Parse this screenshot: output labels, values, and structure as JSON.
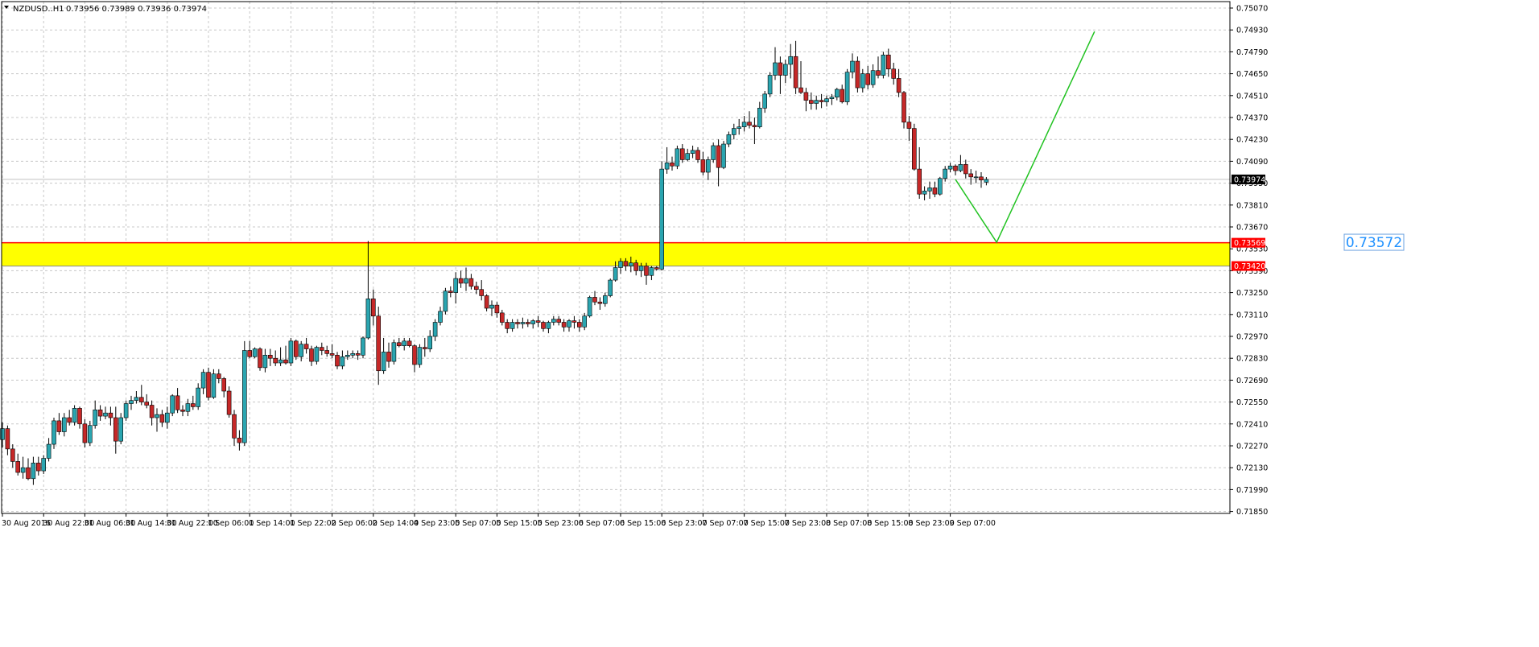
{
  "header": {
    "symbol": "NZDUSD..H1",
    "ohlc": "0.73956 0.73989 0.73936 0.73974"
  },
  "colors": {
    "background": "#ffffff",
    "grid": "#c8c8c8",
    "frame": "#000000",
    "bull_body": "#2aa5b0",
    "bear_body": "#c62828",
    "wick": "#000000",
    "zone_fill": "#ffff00",
    "zone_border": "#ff0000",
    "projection_line": "#22c322",
    "current_price_line": "#c0c0c0",
    "current_price_tag": "#000000",
    "zone_tag": "#ff0000",
    "target_label": "#1e90ff"
  },
  "chart_data": {
    "type": "candlestick",
    "timeframe": "H1",
    "ylim": [
      0.71782,
      0.7507
    ],
    "y_ticks": [
      "0.75070",
      "0.74930",
      "0.74790",
      "0.74650",
      "0.74510",
      "0.74370",
      "0.74230",
      "0.74090",
      "0.73950",
      "0.73810",
      "0.73670",
      "0.73530",
      "0.73390",
      "0.73250",
      "0.73110",
      "0.72970",
      "0.72830",
      "0.72690",
      "0.72550",
      "0.72410",
      "0.72270",
      "0.72130",
      "0.71990",
      "0.71850"
    ],
    "x_ticks": [
      "30 Aug 2016",
      "30 Aug 22:00",
      "31 Aug 06:00",
      "31 Aug 14:00",
      "31 Aug 22:00",
      "1 Sep 06:00",
      "1 Sep 14:00",
      "1 Sep 22:00",
      "2 Sep 06:00",
      "2 Sep 14:00",
      "4 Sep 23:00",
      "5 Sep 07:00",
      "5 Sep 15:00",
      "5 Sep 23:00",
      "6 Sep 07:00",
      "6 Sep 15:00",
      "6 Sep 23:00",
      "7 Sep 07:00",
      "7 Sep 15:00",
      "7 Sep 23:00",
      "8 Sep 07:00",
      "8 Sep 15:00",
      "8 Sep 23:00",
      "9 Sep 07:00"
    ],
    "grid": true,
    "current_price": 0.73974,
    "current_price_label": "0.73974",
    "zone": {
      "top": 0.73569,
      "bottom": 0.7342,
      "top_label": "0.73569",
      "bottom_label": "0.73420"
    },
    "target_label": "0.73572",
    "projection": [
      {
        "bar": 185,
        "price": 0.73974
      },
      {
        "bar": 193,
        "price": 0.73572
      },
      {
        "bar": 212,
        "price": 0.7492
      }
    ],
    "candles": [
      [
        0.7231,
        0.7242,
        0.7226,
        0.7238
      ],
      [
        0.7238,
        0.724,
        0.7221,
        0.7225
      ],
      [
        0.7225,
        0.7228,
        0.7213,
        0.7217
      ],
      [
        0.7217,
        0.7222,
        0.7208,
        0.721
      ],
      [
        0.721,
        0.722,
        0.7206,
        0.7213
      ],
      [
        0.7213,
        0.7219,
        0.7205,
        0.7206
      ],
      [
        0.7206,
        0.722,
        0.7202,
        0.7216
      ],
      [
        0.7216,
        0.722,
        0.7208,
        0.7211
      ],
      [
        0.7211,
        0.7221,
        0.7209,
        0.7219
      ],
      [
        0.7219,
        0.7232,
        0.7217,
        0.7228
      ],
      [
        0.7228,
        0.7245,
        0.7225,
        0.7243
      ],
      [
        0.7243,
        0.7248,
        0.7234,
        0.7236
      ],
      [
        0.7236,
        0.7248,
        0.7233,
        0.7245
      ],
      [
        0.7245,
        0.725,
        0.724,
        0.7242
      ],
      [
        0.7242,
        0.7253,
        0.724,
        0.7251
      ],
      [
        0.7251,
        0.7252,
        0.7238,
        0.7241
      ],
      [
        0.7241,
        0.7244,
        0.7226,
        0.7229
      ],
      [
        0.7229,
        0.7243,
        0.7227,
        0.724
      ],
      [
        0.724,
        0.7256,
        0.7238,
        0.725
      ],
      [
        0.725,
        0.7253,
        0.7243,
        0.7246
      ],
      [
        0.7246,
        0.7252,
        0.7244,
        0.7248
      ],
      [
        0.7248,
        0.7252,
        0.724,
        0.7245
      ],
      [
        0.7245,
        0.7252,
        0.7222,
        0.723
      ],
      [
        0.723,
        0.7248,
        0.7228,
        0.7245
      ],
      [
        0.7245,
        0.7256,
        0.7243,
        0.7254
      ],
      [
        0.7254,
        0.7259,
        0.725,
        0.7256
      ],
      [
        0.7256,
        0.7262,
        0.7254,
        0.7258
      ],
      [
        0.7258,
        0.7266,
        0.7253,
        0.7255
      ],
      [
        0.7255,
        0.726,
        0.7251,
        0.7253
      ],
      [
        0.7253,
        0.7256,
        0.724,
        0.7245
      ],
      [
        0.7245,
        0.7251,
        0.7236,
        0.7247
      ],
      [
        0.7247,
        0.725,
        0.7239,
        0.7242
      ],
      [
        0.7242,
        0.7252,
        0.7238,
        0.7248
      ],
      [
        0.7248,
        0.726,
        0.7246,
        0.7259
      ],
      [
        0.7259,
        0.7264,
        0.7248,
        0.725
      ],
      [
        0.725,
        0.7253,
        0.7246,
        0.7249
      ],
      [
        0.7249,
        0.7257,
        0.7246,
        0.7254
      ],
      [
        0.7254,
        0.7259,
        0.725,
        0.7252
      ],
      [
        0.7252,
        0.7267,
        0.725,
        0.7264
      ],
      [
        0.7264,
        0.7276,
        0.726,
        0.7274
      ],
      [
        0.7274,
        0.7277,
        0.7256,
        0.7258
      ],
      [
        0.7258,
        0.7276,
        0.7257,
        0.7273
      ],
      [
        0.7273,
        0.7276,
        0.7267,
        0.727
      ],
      [
        0.727,
        0.7271,
        0.7258,
        0.7262
      ],
      [
        0.7262,
        0.7265,
        0.7245,
        0.7247
      ],
      [
        0.7247,
        0.725,
        0.7227,
        0.7232
      ],
      [
        0.7232,
        0.7237,
        0.7224,
        0.7229
      ],
      [
        0.7229,
        0.7294,
        0.7227,
        0.7288
      ],
      [
        0.7288,
        0.7294,
        0.7283,
        0.7284
      ],
      [
        0.7284,
        0.729,
        0.7283,
        0.7289
      ],
      [
        0.7289,
        0.729,
        0.7275,
        0.7277
      ],
      [
        0.7277,
        0.7289,
        0.7274,
        0.7285
      ],
      [
        0.7285,
        0.7289,
        0.7278,
        0.7283
      ],
      [
        0.7283,
        0.7288,
        0.7278,
        0.728
      ],
      [
        0.728,
        0.729,
        0.7278,
        0.7282
      ],
      [
        0.7282,
        0.7291,
        0.7279,
        0.728
      ],
      [
        0.728,
        0.7296,
        0.7278,
        0.7294
      ],
      [
        0.7294,
        0.7295,
        0.7282,
        0.7284
      ],
      [
        0.7284,
        0.7294,
        0.7281,
        0.7292
      ],
      [
        0.7292,
        0.7296,
        0.7286,
        0.7289
      ],
      [
        0.7289,
        0.7291,
        0.7278,
        0.7281
      ],
      [
        0.7281,
        0.7291,
        0.7279,
        0.729
      ],
      [
        0.729,
        0.7293,
        0.7285,
        0.7288
      ],
      [
        0.7288,
        0.7291,
        0.7284,
        0.7286
      ],
      [
        0.7286,
        0.7292,
        0.7283,
        0.7285
      ],
      [
        0.7285,
        0.7287,
        0.7276,
        0.7278
      ],
      [
        0.7278,
        0.7288,
        0.7276,
        0.7284
      ],
      [
        0.7284,
        0.7288,
        0.7282,
        0.7285
      ],
      [
        0.7285,
        0.7288,
        0.7283,
        0.7286
      ],
      [
        0.7286,
        0.7288,
        0.7282,
        0.7285
      ],
      [
        0.7285,
        0.7297,
        0.7283,
        0.7296
      ],
      [
        0.7296,
        0.7358,
        0.7295,
        0.7321
      ],
      [
        0.7321,
        0.7327,
        0.7304,
        0.731
      ],
      [
        0.731,
        0.7316,
        0.7266,
        0.7275
      ],
      [
        0.7275,
        0.7296,
        0.7273,
        0.7287
      ],
      [
        0.7287,
        0.7293,
        0.7277,
        0.7281
      ],
      [
        0.7281,
        0.7295,
        0.7279,
        0.7293
      ],
      [
        0.7293,
        0.7296,
        0.729,
        0.7291
      ],
      [
        0.7291,
        0.7296,
        0.7288,
        0.7294
      ],
      [
        0.7294,
        0.7296,
        0.729,
        0.7291
      ],
      [
        0.7291,
        0.7292,
        0.7274,
        0.7279
      ],
      [
        0.7279,
        0.7292,
        0.7277,
        0.729
      ],
      [
        0.729,
        0.7296,
        0.7284,
        0.7289
      ],
      [
        0.7289,
        0.7301,
        0.7287,
        0.7297
      ],
      [
        0.7297,
        0.7308,
        0.7294,
        0.7306
      ],
      [
        0.7306,
        0.7316,
        0.7304,
        0.7313
      ],
      [
        0.7313,
        0.7328,
        0.7311,
        0.7326
      ],
      [
        0.7326,
        0.7329,
        0.7322,
        0.7325
      ],
      [
        0.7325,
        0.7338,
        0.7318,
        0.7334
      ],
      [
        0.7334,
        0.7339,
        0.7328,
        0.7331
      ],
      [
        0.7331,
        0.7341,
        0.7326,
        0.7334
      ],
      [
        0.7334,
        0.7337,
        0.7327,
        0.7329
      ],
      [
        0.7329,
        0.7332,
        0.7324,
        0.7327
      ],
      [
        0.7327,
        0.7333,
        0.732,
        0.7323
      ],
      [
        0.7323,
        0.7324,
        0.7313,
        0.7315
      ],
      [
        0.7315,
        0.732,
        0.731,
        0.7317
      ],
      [
        0.7317,
        0.7319,
        0.7309,
        0.7312
      ],
      [
        0.7312,
        0.7314,
        0.7304,
        0.7306
      ],
      [
        0.7306,
        0.7308,
        0.7299,
        0.7302
      ],
      [
        0.7302,
        0.7308,
        0.73,
        0.7306
      ],
      [
        0.7306,
        0.7308,
        0.7302,
        0.7305
      ],
      [
        0.7305,
        0.7309,
        0.7302,
        0.7306
      ],
      [
        0.7306,
        0.7308,
        0.7303,
        0.7305
      ],
      [
        0.7305,
        0.7308,
        0.7302,
        0.7307
      ],
      [
        0.7307,
        0.731,
        0.7303,
        0.7306
      ],
      [
        0.7306,
        0.7307,
        0.73,
        0.7302
      ],
      [
        0.7302,
        0.7307,
        0.7299,
        0.7306
      ],
      [
        0.7306,
        0.731,
        0.7304,
        0.7308
      ],
      [
        0.7308,
        0.731,
        0.7304,
        0.7306
      ],
      [
        0.7306,
        0.7308,
        0.73,
        0.7303
      ],
      [
        0.7303,
        0.7308,
        0.73,
        0.7307
      ],
      [
        0.7307,
        0.731,
        0.7302,
        0.7306
      ],
      [
        0.7306,
        0.7308,
        0.73,
        0.7303
      ],
      [
        0.7303,
        0.7312,
        0.7301,
        0.731
      ],
      [
        0.731,
        0.7323,
        0.7309,
        0.7322
      ],
      [
        0.7322,
        0.7326,
        0.7317,
        0.7319
      ],
      [
        0.7319,
        0.7322,
        0.7314,
        0.7318
      ],
      [
        0.7318,
        0.7325,
        0.7316,
        0.7323
      ],
      [
        0.7323,
        0.7334,
        0.7322,
        0.7333
      ],
      [
        0.7333,
        0.7345,
        0.7332,
        0.7341
      ],
      [
        0.7341,
        0.7347,
        0.7337,
        0.7345
      ],
      [
        0.7345,
        0.7347,
        0.7339,
        0.7342
      ],
      [
        0.7342,
        0.7348,
        0.7338,
        0.7344
      ],
      [
        0.7344,
        0.7346,
        0.7336,
        0.7339
      ],
      [
        0.7339,
        0.7344,
        0.7335,
        0.7342
      ],
      [
        0.7342,
        0.7344,
        0.733,
        0.7336
      ],
      [
        0.7336,
        0.7342,
        0.7333,
        0.7341
      ],
      [
        0.7341,
        0.7342,
        0.7339,
        0.734
      ],
      [
        0.734,
        0.7409,
        0.7339,
        0.7404
      ],
      [
        0.7404,
        0.7418,
        0.7401,
        0.7408
      ],
      [
        0.7408,
        0.7412,
        0.7403,
        0.7406
      ],
      [
        0.7406,
        0.7419,
        0.7404,
        0.7417
      ],
      [
        0.7417,
        0.742,
        0.7408,
        0.741
      ],
      [
        0.741,
        0.7417,
        0.7409,
        0.7414
      ],
      [
        0.7414,
        0.7419,
        0.7411,
        0.7416
      ],
      [
        0.7416,
        0.7418,
        0.7408,
        0.741
      ],
      [
        0.741,
        0.7415,
        0.74,
        0.7402
      ],
      [
        0.7402,
        0.7412,
        0.7397,
        0.741
      ],
      [
        0.741,
        0.7421,
        0.7408,
        0.7419
      ],
      [
        0.7419,
        0.7423,
        0.7393,
        0.7405
      ],
      [
        0.7405,
        0.7422,
        0.7404,
        0.742
      ],
      [
        0.742,
        0.7428,
        0.7418,
        0.7426
      ],
      [
        0.7426,
        0.7433,
        0.7423,
        0.743
      ],
      [
        0.743,
        0.7436,
        0.7426,
        0.7431
      ],
      [
        0.7431,
        0.7438,
        0.7428,
        0.7434
      ],
      [
        0.7434,
        0.7441,
        0.743,
        0.7432
      ],
      [
        0.7432,
        0.7437,
        0.742,
        0.7431
      ],
      [
        0.7431,
        0.7447,
        0.743,
        0.7443
      ],
      [
        0.7443,
        0.7454,
        0.744,
        0.7452
      ],
      [
        0.7452,
        0.7466,
        0.745,
        0.7464
      ],
      [
        0.7464,
        0.7482,
        0.7461,
        0.7472
      ],
      [
        0.7472,
        0.7476,
        0.7452,
        0.7464
      ],
      [
        0.7464,
        0.7474,
        0.7459,
        0.7471
      ],
      [
        0.7471,
        0.7484,
        0.7462,
        0.7476
      ],
      [
        0.7476,
        0.7486,
        0.7452,
        0.7456
      ],
      [
        0.7456,
        0.7473,
        0.7452,
        0.7453
      ],
      [
        0.7453,
        0.7456,
        0.7441,
        0.7448
      ],
      [
        0.7448,
        0.7453,
        0.7442,
        0.7446
      ],
      [
        0.7446,
        0.7451,
        0.7442,
        0.7448
      ],
      [
        0.7448,
        0.7452,
        0.7443,
        0.7447
      ],
      [
        0.7447,
        0.7451,
        0.7444,
        0.7449
      ],
      [
        0.7449,
        0.7452,
        0.7445,
        0.745
      ],
      [
        0.745,
        0.7456,
        0.7448,
        0.7455
      ],
      [
        0.7455,
        0.7458,
        0.7446,
        0.7447
      ],
      [
        0.7447,
        0.7468,
        0.7445,
        0.7466
      ],
      [
        0.7466,
        0.7478,
        0.7462,
        0.7473
      ],
      [
        0.7473,
        0.7476,
        0.7453,
        0.7456
      ],
      [
        0.7456,
        0.7468,
        0.7453,
        0.7465
      ],
      [
        0.7465,
        0.747,
        0.7455,
        0.7458
      ],
      [
        0.7458,
        0.7471,
        0.7456,
        0.7467
      ],
      [
        0.7467,
        0.7476,
        0.7462,
        0.7464
      ],
      [
        0.7464,
        0.7479,
        0.7462,
        0.7477
      ],
      [
        0.7477,
        0.7481,
        0.7463,
        0.7468
      ],
      [
        0.7468,
        0.7472,
        0.7458,
        0.7462
      ],
      [
        0.7462,
        0.7468,
        0.745,
        0.7453
      ],
      [
        0.7453,
        0.7454,
        0.743,
        0.7434
      ],
      [
        0.7434,
        0.7438,
        0.7422,
        0.743
      ],
      [
        0.743,
        0.7433,
        0.7403,
        0.7404
      ],
      [
        0.7404,
        0.7418,
        0.7385,
        0.7388
      ],
      [
        0.7388,
        0.7393,
        0.7384,
        0.739
      ],
      [
        0.739,
        0.7396,
        0.7385,
        0.7392
      ],
      [
        0.7392,
        0.7396,
        0.7386,
        0.7388
      ],
      [
        0.7388,
        0.7399,
        0.7387,
        0.7398
      ],
      [
        0.7398,
        0.7406,
        0.7396,
        0.7404
      ],
      [
        0.7404,
        0.7408,
        0.7402,
        0.7406
      ],
      [
        0.7406,
        0.7407,
        0.74,
        0.7403
      ],
      [
        0.7403,
        0.7413,
        0.7402,
        0.7407
      ],
      [
        0.7407,
        0.741,
        0.7398,
        0.7401
      ],
      [
        0.7401,
        0.7404,
        0.7394,
        0.7399
      ],
      [
        0.7399,
        0.7403,
        0.7395,
        0.7399
      ],
      [
        0.7399,
        0.7402,
        0.7392,
        0.7397
      ],
      [
        0.73956,
        0.73989,
        0.73936,
        0.73974
      ]
    ]
  }
}
